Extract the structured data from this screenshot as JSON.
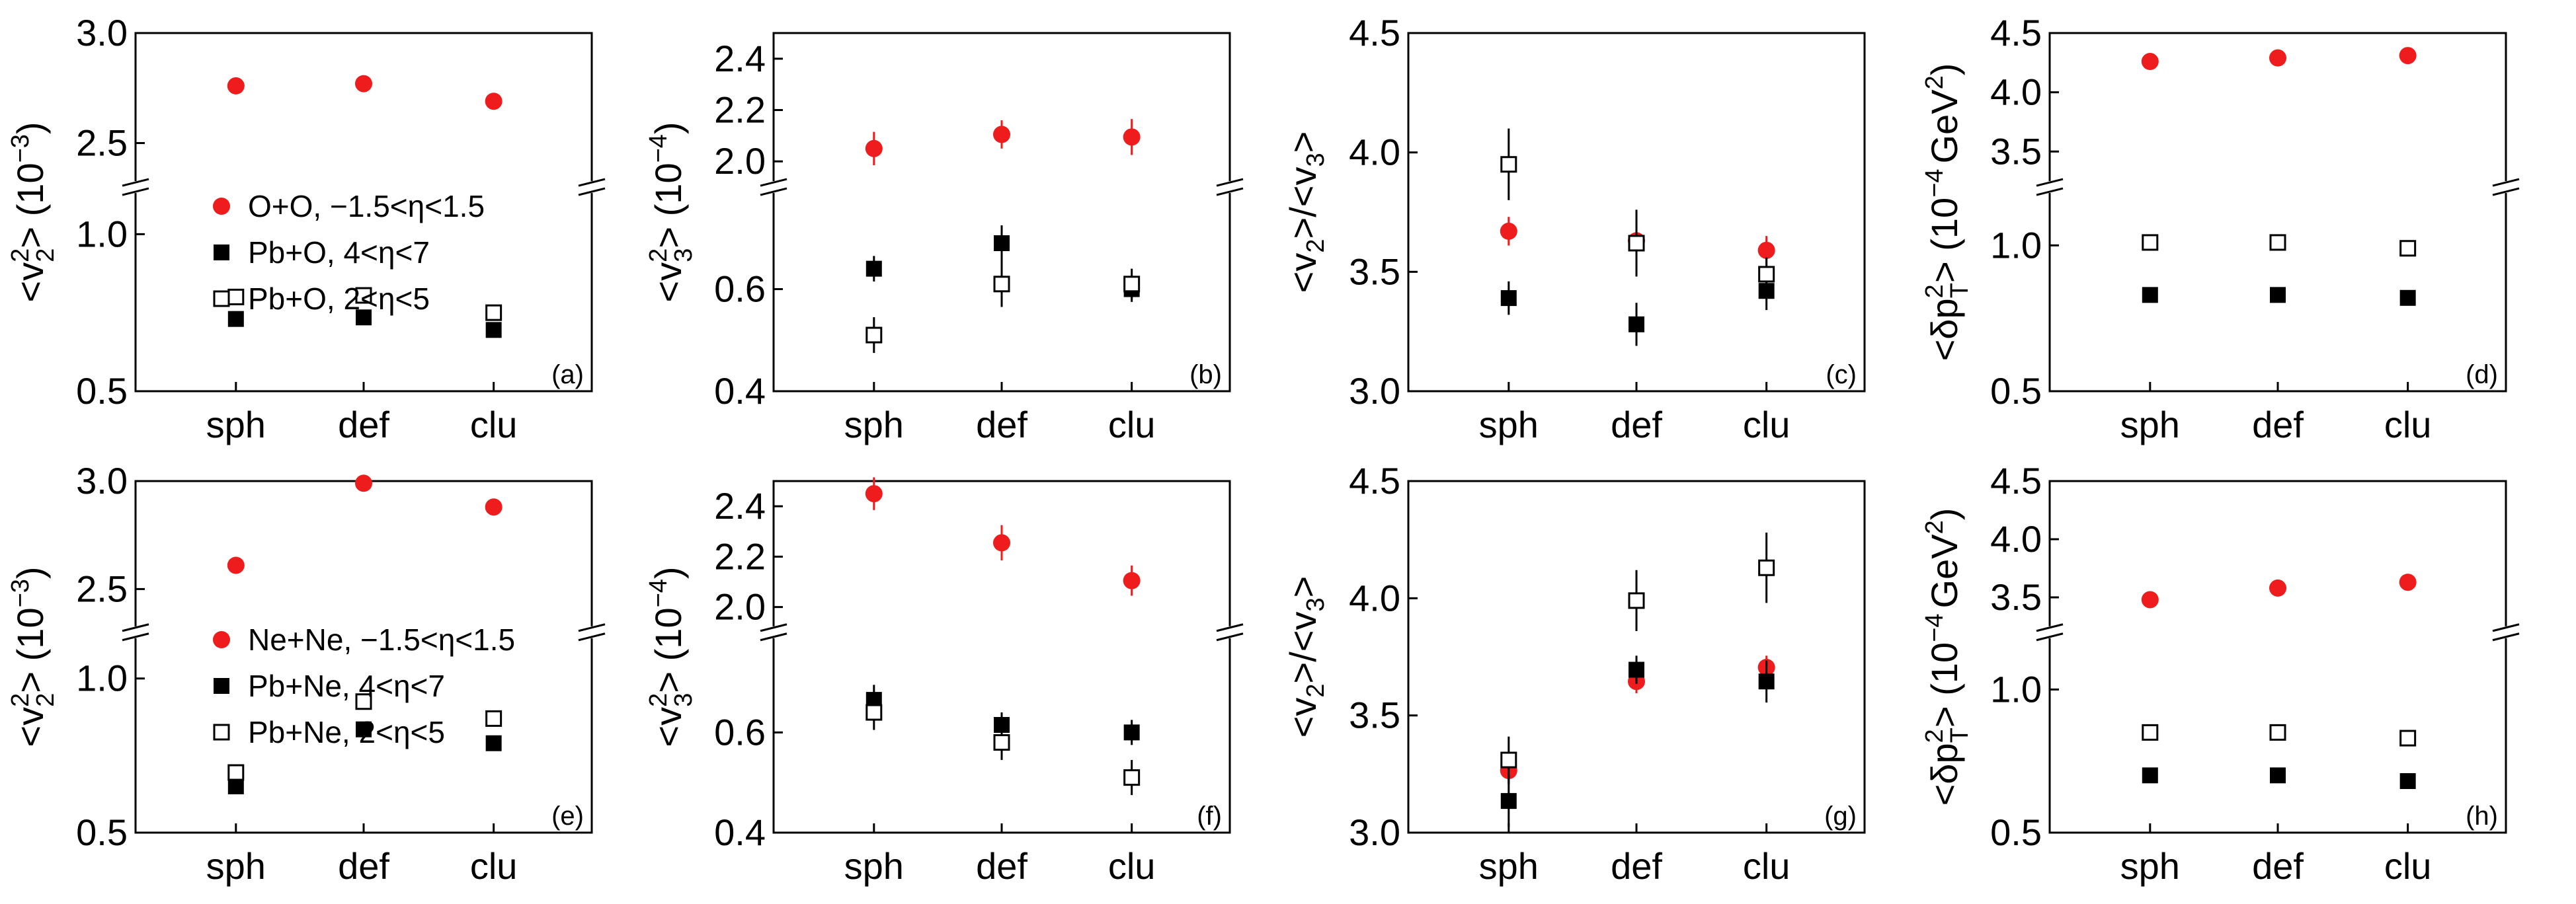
{
  "chart_data": [
    {
      "id": "a",
      "type": "scatter",
      "panel_label": "(a)",
      "ylabel": {
        "main": "<v",
        "sup": "2",
        "sub": "2",
        "tail": "> (10",
        "unit_sup": "−3",
        "close": ")"
      },
      "categories": [
        "sph",
        "def",
        "clu"
      ],
      "y_upper": {
        "range": [
          2.3,
          3.0
        ],
        "ticks": [
          "2.5",
          "3.0"
        ]
      },
      "y_lower": {
        "range": [
          0.5,
          1.15
        ],
        "ticks": [
          "0.5",
          "1.0"
        ]
      },
      "legend": [
        "O+O, −1.5<η<1.5",
        "Pb+O, 4<η<7",
        "Pb+O, 2<η<5"
      ],
      "series": [
        {
          "name": "O+O, −1.5<η<1.5",
          "marker": "circle-red",
          "values": [
            2.76,
            2.77,
            2.69
          ],
          "errors": [
            0.008,
            0.008,
            0.008
          ]
        },
        {
          "name": "Pb+O, 4<η<7",
          "marker": "square-filled",
          "values": [
            0.73,
            0.735,
            0.695
          ],
          "errors": [
            0.02,
            0.02,
            0.02
          ]
        },
        {
          "name": "Pb+O, 2<η<5",
          "marker": "square-open",
          "values": [
            0.8,
            0.805,
            0.75
          ],
          "errors": [
            0.025,
            0.025,
            0.025
          ]
        }
      ]
    },
    {
      "id": "b",
      "type": "scatter",
      "panel_label": "(b)",
      "ylabel": {
        "main": "<v",
        "sup": "2",
        "sub": "3",
        "tail": "> (10",
        "unit_sup": "−4",
        "close": ")"
      },
      "categories": [
        "sph",
        "def",
        "clu"
      ],
      "y_upper": {
        "range": [
          1.9,
          2.5
        ],
        "ticks": [
          "2.0",
          "2.2",
          "2.4"
        ]
      },
      "y_lower": {
        "range": [
          0.4,
          0.8
        ],
        "ticks": [
          "0.4",
          "0.6"
        ]
      },
      "series": [
        {
          "name": "O+O, −1.5<η<1.5",
          "marker": "circle-red",
          "values": [
            2.05,
            2.105,
            2.095
          ],
          "errors": [
            0.065,
            0.055,
            0.07
          ]
        },
        {
          "name": "Pb+O, 4<η<7",
          "marker": "square-filled",
          "values": [
            0.64,
            0.69,
            0.6
          ],
          "errors": [
            0.025,
            0.035,
            0.025
          ]
        },
        {
          "name": "Pb+O, 2<η<5",
          "marker": "square-open",
          "values": [
            0.51,
            0.61,
            0.61
          ],
          "errors": [
            0.035,
            0.045,
            0.03
          ]
        }
      ]
    },
    {
      "id": "c",
      "type": "scatter",
      "panel_label": "(c)",
      "ylabel": {
        "text": "<v2>/<v3>"
      },
      "categories": [
        "sph",
        "def",
        "clu"
      ],
      "y": {
        "range": [
          3.0,
          4.5
        ],
        "ticks": [
          "3.0",
          "3.5",
          "4.0",
          "4.5"
        ]
      },
      "series": [
        {
          "name": "O+O, −1.5<η<1.5",
          "marker": "circle-red",
          "values": [
            3.67,
            3.63,
            3.59
          ],
          "errors": [
            0.06,
            0.06,
            0.06
          ]
        },
        {
          "name": "Pb+O, 4<η<7",
          "marker": "square-filled",
          "values": [
            3.39,
            3.28,
            3.42
          ],
          "errors": [
            0.07,
            0.09,
            0.08
          ]
        },
        {
          "name": "Pb+O, 2<η<5",
          "marker": "square-open",
          "values": [
            3.95,
            3.62,
            3.49
          ],
          "errors": [
            0.15,
            0.14,
            0.07
          ]
        }
      ]
    },
    {
      "id": "d",
      "type": "scatter",
      "panel_label": "(d)",
      "ylabel": {
        "main": "<δp",
        "sup": "2",
        "sub": "T",
        "tail": "> (10",
        "unit_sup": "−4",
        "close": "GeV",
        "gev_sup": "2",
        "end": ")"
      },
      "categories": [
        "sph",
        "def",
        "clu"
      ],
      "y_upper": {
        "range": [
          3.2,
          4.5
        ],
        "ticks": [
          "3.5",
          "4.0",
          "4.5"
        ]
      },
      "y_lower": {
        "range": [
          0.5,
          1.2
        ],
        "ticks": [
          "0.5",
          "1.0"
        ]
      },
      "series": [
        {
          "name": "O+O, −1.5<η<1.5",
          "marker": "circle-red",
          "values": [
            4.26,
            4.29,
            4.31
          ],
          "errors": [
            0.01,
            0.01,
            0.01
          ]
        },
        {
          "name": "Pb+O, 4<η<7",
          "marker": "square-filled",
          "values": [
            0.83,
            0.83,
            0.82
          ],
          "errors": [
            0.01,
            0.01,
            0.01
          ]
        },
        {
          "name": "Pb+O, 2<η<5",
          "marker": "square-open",
          "values": [
            1.01,
            1.01,
            0.99
          ],
          "errors": [
            0.02,
            0.02,
            0.02
          ]
        }
      ]
    },
    {
      "id": "e",
      "type": "scatter",
      "panel_label": "(e)",
      "ylabel": {
        "main": "<v",
        "sup": "2",
        "sub": "2",
        "tail": "> (10",
        "unit_sup": "−3",
        "close": ")"
      },
      "categories": [
        "sph",
        "def",
        "clu"
      ],
      "y_upper": {
        "range": [
          2.3,
          3.0
        ],
        "ticks": [
          "2.5",
          "3.0"
        ]
      },
      "y_lower": {
        "range": [
          0.5,
          1.15
        ],
        "ticks": [
          "0.5",
          "1.0"
        ]
      },
      "legend": [
        "Ne+Ne, −1.5<η<1.5",
        "Pb+Ne, 4<η<7",
        "Pb+Ne, 2<η<5"
      ],
      "series": [
        {
          "name": "Ne+Ne, −1.5<η<1.5",
          "marker": "circle-red",
          "values": [
            2.61,
            2.99,
            2.88
          ],
          "errors": [
            0.008,
            0.008,
            0.008
          ]
        },
        {
          "name": "Pb+Ne, 4<η<7",
          "marker": "square-filled",
          "values": [
            0.65,
            0.835,
            0.79
          ],
          "errors": [
            0.02,
            0.02,
            0.02
          ]
        },
        {
          "name": "Pb+Ne, 2<η<5",
          "marker": "square-open",
          "values": [
            0.695,
            0.925,
            0.87
          ],
          "errors": [
            0.025,
            0.025,
            0.025
          ]
        }
      ]
    },
    {
      "id": "f",
      "type": "scatter",
      "panel_label": "(f)",
      "ylabel": {
        "main": "<v",
        "sup": "2",
        "sub": "3",
        "tail": "> (10",
        "unit_sup": "−4",
        "close": ")"
      },
      "categories": [
        "sph",
        "def",
        "clu"
      ],
      "y_upper": {
        "range": [
          1.9,
          2.5
        ],
        "ticks": [
          "2.0",
          "2.2",
          "2.4"
        ]
      },
      "y_lower": {
        "range": [
          0.4,
          0.8
        ],
        "ticks": [
          "0.4",
          "0.6"
        ]
      },
      "series": [
        {
          "name": "Ne+Ne, −1.5<η<1.5",
          "marker": "circle-red",
          "values": [
            2.45,
            2.255,
            2.105
          ],
          "errors": [
            0.065,
            0.07,
            0.06
          ]
        },
        {
          "name": "Pb+Ne, 4<η<7",
          "marker": "square-filled",
          "values": [
            0.665,
            0.615,
            0.6
          ],
          "errors": [
            0.03,
            0.025,
            0.025
          ]
        },
        {
          "name": "Pb+Ne, 2<η<5",
          "marker": "square-open",
          "values": [
            0.64,
            0.58,
            0.51
          ],
          "errors": [
            0.035,
            0.035,
            0.035
          ]
        }
      ]
    },
    {
      "id": "g",
      "type": "scatter",
      "panel_label": "(g)",
      "ylabel": {
        "text": "<v2>/<v3>"
      },
      "categories": [
        "sph",
        "def",
        "clu"
      ],
      "y": {
        "range": [
          3.0,
          4.5
        ],
        "ticks": [
          "3.0",
          "3.5",
          "4.0",
          "4.5"
        ]
      },
      "series": [
        {
          "name": "Ne+Ne, −1.5<η<1.5",
          "marker": "circle-red",
          "values": [
            3.265,
            3.645,
            3.705
          ],
          "errors": [
            0.06,
            0.05,
            0.05
          ]
        },
        {
          "name": "Pb+Ne, 4<η<7",
          "marker": "square-filled",
          "values": [
            3.135,
            3.695,
            3.645
          ],
          "errors": [
            0.11,
            0.06,
            0.09
          ]
        },
        {
          "name": "Pb+Ne, 2<η<5",
          "marker": "square-open",
          "values": [
            3.31,
            3.99,
            4.13
          ],
          "errors": [
            0.1,
            0.13,
            0.15
          ]
        }
      ]
    },
    {
      "id": "h",
      "type": "scatter",
      "panel_label": "(h)",
      "ylabel": {
        "main": "<δp",
        "sup": "2",
        "sub": "T",
        "tail": "> (10",
        "unit_sup": "−4",
        "close": "GeV",
        "gev_sup": "2",
        "end": ")"
      },
      "categories": [
        "sph",
        "def",
        "clu"
      ],
      "y_upper": {
        "range": [
          3.2,
          4.5
        ],
        "ticks": [
          "3.5",
          "4.0",
          "4.5"
        ]
      },
      "y_lower": {
        "range": [
          0.5,
          1.2
        ],
        "ticks": [
          "0.5",
          "1.0"
        ]
      },
      "series": [
        {
          "name": "Ne+Ne, −1.5<η<1.5",
          "marker": "circle-red",
          "values": [
            3.48,
            3.58,
            3.63
          ],
          "errors": [
            0.01,
            0.01,
            0.01
          ]
        },
        {
          "name": "Pb+Ne, 4<η<7",
          "marker": "square-filled",
          "values": [
            0.7,
            0.7,
            0.68
          ],
          "errors": [
            0.01,
            0.01,
            0.01
          ]
        },
        {
          "name": "Pb+Ne, 2<η<5",
          "marker": "square-open",
          "values": [
            0.85,
            0.85,
            0.83
          ],
          "errors": [
            0.02,
            0.02,
            0.02
          ]
        }
      ]
    }
  ],
  "colors": {
    "red": "#ee1c1c",
    "black": "#000000"
  }
}
